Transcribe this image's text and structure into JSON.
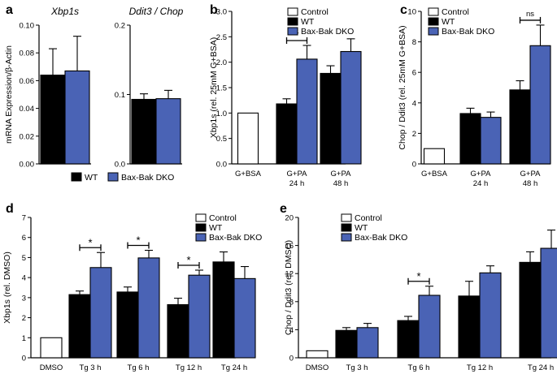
{
  "colors": {
    "control": "#ffffff",
    "wt": "#000000",
    "dko": "#4a63b5",
    "axis": "#000000"
  },
  "chart_data": [
    {
      "id": "a1",
      "panel": "a",
      "type": "bar",
      "title": "Xbp1s",
      "ylabel": "mRNA Expression/β-Actin",
      "ylim": [
        0,
        0.1
      ],
      "yticks": [
        "0.00",
        "0.02",
        "0.04",
        "0.06",
        "0.08",
        "0.10"
      ],
      "categories": [
        ""
      ],
      "series": [
        {
          "name": "WT",
          "key": "wt",
          "values": [
            0.064
          ],
          "errors": [
            0.019
          ]
        },
        {
          "name": "Bax-Bak DKO",
          "key": "dko",
          "values": [
            0.067
          ],
          "errors": [
            0.025
          ]
        }
      ]
    },
    {
      "id": "a2",
      "panel": "",
      "type": "bar",
      "title": "Ddit3 / Chop",
      "ylabel": "",
      "ylim": [
        0,
        0.2
      ],
      "yticks": [
        "0.0",
        "0.1",
        "0.2"
      ],
      "categories": [
        ""
      ],
      "series": [
        {
          "name": "WT",
          "key": "wt",
          "values": [
            0.093
          ],
          "errors": [
            0.008
          ]
        },
        {
          "name": "Bax-Bak DKO",
          "key": "dko",
          "values": [
            0.094
          ],
          "errors": [
            0.012
          ]
        }
      ],
      "legend": [
        "WT",
        "Bax-Bak DKO"
      ]
    },
    {
      "id": "b",
      "panel": "b",
      "type": "bar",
      "ylabel": "Xbp1s (rel. 25mM G+BSA)",
      "ylim": [
        0,
        3.0
      ],
      "yticks": [
        "0.0",
        "0.5",
        "1.0",
        "1.5",
        "2.0",
        "2.5",
        "3.0"
      ],
      "categories": [
        [
          "G+BSA"
        ],
        [
          "G+PA",
          "24 h"
        ],
        [
          "G+PA",
          "48 h"
        ]
      ],
      "series": [
        {
          "name": "Control",
          "key": "control",
          "values": [
            1.0,
            null,
            null
          ],
          "errors": [
            0,
            null,
            null
          ]
        },
        {
          "name": "WT",
          "key": "wt",
          "values": [
            null,
            1.18,
            1.78
          ],
          "errors": [
            null,
            0.1,
            0.15
          ]
        },
        {
          "name": "Bax-Bak DKO",
          "key": "dko",
          "values": [
            null,
            2.06,
            2.21
          ],
          "errors": [
            null,
            0.27,
            0.25
          ]
        }
      ],
      "annotations": [
        {
          "category": 1,
          "label": "*"
        }
      ],
      "legend": [
        "Control",
        "WT",
        "Bax-Bak DKO"
      ]
    },
    {
      "id": "c",
      "panel": "c",
      "type": "bar",
      "ylabel": "Chop / Ddit3 (rel. 25mM G+BSA)",
      "ylim": [
        0,
        10
      ],
      "yticks": [
        "0",
        "2",
        "4",
        "6",
        "8",
        "10"
      ],
      "categories": [
        [
          "G+BSA"
        ],
        [
          "G+PA",
          "24 h"
        ],
        [
          "G+PA",
          "48 h"
        ]
      ],
      "series": [
        {
          "name": "Control",
          "key": "control",
          "values": [
            1.0,
            null,
            null
          ],
          "errors": [
            0,
            null,
            null
          ]
        },
        {
          "name": "WT",
          "key": "wt",
          "values": [
            null,
            3.3,
            4.85
          ],
          "errors": [
            null,
            0.35,
            0.6
          ]
        },
        {
          "name": "Bax-Bak DKO",
          "key": "dko",
          "values": [
            null,
            3.05,
            7.75
          ],
          "errors": [
            null,
            0.35,
            1.35
          ]
        }
      ],
      "annotations": [
        {
          "category": 2,
          "label": "ns"
        }
      ],
      "legend": [
        "Control",
        "WT",
        "Bax-Bak DKO"
      ]
    },
    {
      "id": "d",
      "panel": "d",
      "type": "bar",
      "ylabel": "Xbp1s (rel. DMSO)",
      "ylim": [
        0,
        7
      ],
      "yticks": [
        "0",
        "1",
        "2",
        "3",
        "4",
        "5",
        "6",
        "7"
      ],
      "categories": [
        [
          "DMSO"
        ],
        [
          "Tg 3 h"
        ],
        [
          "Tg 6 h"
        ],
        [
          "Tg 12 h"
        ],
        [
          "Tg 24 h"
        ]
      ],
      "series": [
        {
          "name": "Control",
          "key": "control",
          "values": [
            1.0,
            null,
            null,
            null,
            null
          ],
          "errors": [
            0,
            null,
            null,
            null,
            null
          ]
        },
        {
          "name": "WT",
          "key": "wt",
          "values": [
            null,
            3.15,
            3.28,
            2.65,
            4.78
          ],
          "errors": [
            null,
            0.18,
            0.25,
            0.32,
            0.5
          ]
        },
        {
          "name": "Bax-Bak DKO",
          "key": "dko",
          "values": [
            null,
            4.5,
            4.98,
            4.12,
            3.95
          ],
          "errors": [
            null,
            0.75,
            0.38,
            0.25,
            0.6
          ]
        }
      ],
      "annotations": [
        {
          "category": 1,
          "label": "*"
        },
        {
          "category": 2,
          "label": "*"
        },
        {
          "category": 3,
          "label": "*"
        }
      ],
      "legend": [
        "Control",
        "WT",
        "Bax-Bak DKO"
      ]
    },
    {
      "id": "e",
      "panel": "e",
      "type": "bar",
      "ylabel": "Chop / Ddit3 (rel. DMSO)",
      "ylim": [
        0,
        20
      ],
      "yticks": [
        "0",
        "4",
        "8",
        "12",
        "16",
        "20"
      ],
      "categories": [
        [
          "DMSO"
        ],
        [
          "Tg 3 h"
        ],
        [
          "Tg 6 h"
        ],
        [
          "Tg 12 h"
        ],
        [
          "Tg 24 h"
        ]
      ],
      "series": [
        {
          "name": "Control",
          "key": "control",
          "values": [
            1.0,
            null,
            null,
            null,
            null
          ],
          "errors": [
            0,
            null,
            null,
            null,
            null
          ]
        },
        {
          "name": "WT",
          "key": "wt",
          "values": [
            null,
            3.9,
            5.3,
            8.8,
            13.6
          ],
          "errors": [
            null,
            0.4,
            0.6,
            2.1,
            1.5
          ]
        },
        {
          "name": "Bax-Bak DKO",
          "key": "dko",
          "values": [
            null,
            4.3,
            8.9,
            12.1,
            15.6
          ],
          "errors": [
            null,
            0.6,
            1.3,
            1.0,
            2.6
          ]
        }
      ],
      "annotations": [
        {
          "category": 2,
          "label": "*"
        }
      ],
      "legend": [
        "Control",
        "WT",
        "Bax-Bak DKO"
      ]
    }
  ]
}
